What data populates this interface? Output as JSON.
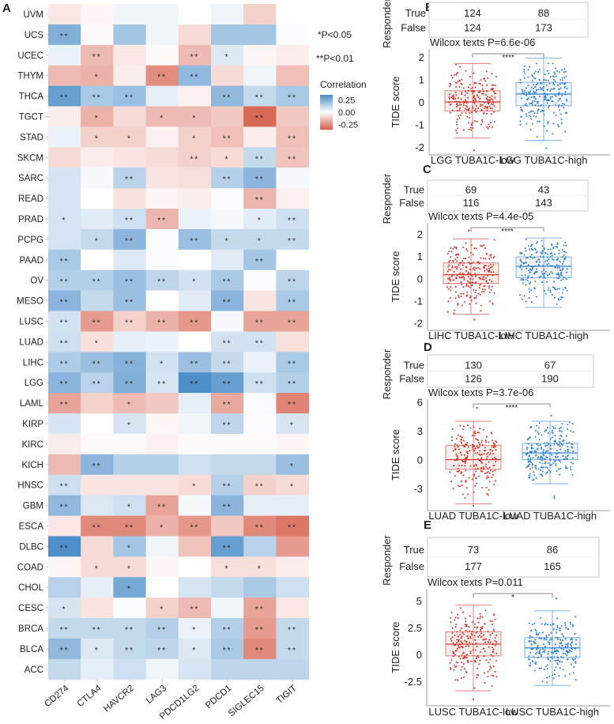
{
  "panel_labels": [
    "A",
    "B",
    "C",
    "D",
    "E"
  ],
  "chart_data": [
    {
      "type": "heatmap",
      "panel": "A",
      "rows": [
        "UVM",
        "UCS",
        "UCEC",
        "THYM",
        "THCA",
        "TGCT",
        "STAD",
        "SKCM",
        "SARC",
        "READ",
        "PRAD",
        "PCPG",
        "PAAD",
        "OV",
        "MESO",
        "LUSC",
        "LUAD",
        "LIHC",
        "LGG",
        "LAML",
        "KIRP",
        "KIRC",
        "KICH",
        "HNSC",
        "GBM",
        "ESCA",
        "DLBC",
        "COAD",
        "CHOL",
        "CESC",
        "BRCA",
        "BLCA",
        "ACC"
      ],
      "columns": [
        "CD274",
        "CTLA4",
        "HAVCR2",
        "LAG3",
        "PDCD1LG2",
        "PDCD1",
        "SIGLEC15",
        "TIGIT"
      ],
      "values": [
        [
          -0.05,
          -0.02,
          0.03,
          0.03,
          0.0,
          0.03,
          -0.1,
          0.0
        ],
        [
          0.25,
          -0.01,
          0.18,
          0.03,
          -0.08,
          0.18,
          0.18,
          0.01
        ],
        [
          0.04,
          -0.15,
          -0.05,
          -0.01,
          -0.15,
          0.07,
          -0.02,
          -0.04
        ],
        [
          -0.15,
          -0.17,
          -0.04,
          -0.25,
          0.22,
          -0.08,
          0.03,
          -0.14
        ],
        [
          0.3,
          0.17,
          0.2,
          0.05,
          -0.03,
          0.22,
          0.12,
          0.17
        ],
        [
          -0.04,
          -0.17,
          -0.08,
          -0.15,
          -0.15,
          -0.12,
          -0.33,
          -0.12
        ],
        [
          0.04,
          -0.1,
          -0.1,
          -0.03,
          -0.1,
          -0.14,
          -0.04,
          -0.14
        ],
        [
          -0.08,
          -0.04,
          -0.06,
          -0.08,
          -0.1,
          -0.08,
          0.12,
          -0.13
        ],
        [
          0.08,
          0.02,
          0.14,
          -0.06,
          -0.07,
          0.15,
          0.23,
          0.02
        ],
        [
          0.08,
          0.0,
          -0.07,
          -0.02,
          -0.04,
          0.01,
          -0.16,
          -0.03
        ],
        [
          0.08,
          0.06,
          0.1,
          -0.16,
          0.04,
          0.02,
          0.06,
          0.1
        ],
        [
          0.08,
          0.12,
          0.23,
          0.01,
          0.2,
          0.12,
          0.12,
          0.12
        ],
        [
          0.17,
          0.0,
          0.07,
          0.01,
          0.0,
          0.06,
          0.18,
          0.0
        ],
        [
          0.15,
          0.15,
          0.2,
          0.13,
          0.09,
          0.17,
          0.01,
          0.13
        ],
        [
          0.23,
          0.12,
          0.2,
          0.0,
          0.06,
          0.23,
          -0.06,
          0.17
        ],
        [
          0.09,
          -0.22,
          -0.1,
          -0.17,
          -0.23,
          0.02,
          -0.2,
          -0.2
        ],
        [
          0.1,
          -0.07,
          0.05,
          0.04,
          0.0,
          0.09,
          0.09,
          -0.07
        ],
        [
          0.16,
          0.2,
          0.24,
          0.09,
          0.2,
          0.12,
          0.04,
          0.17
        ],
        [
          0.23,
          0.14,
          0.25,
          0.08,
          0.35,
          0.3,
          0.1,
          0.15
        ],
        [
          -0.2,
          -0.1,
          -0.15,
          -0.12,
          0.05,
          -0.19,
          0.01,
          -0.27
        ],
        [
          0.08,
          0.0,
          0.08,
          -0.02,
          0.03,
          0.13,
          0.01,
          0.08
        ],
        [
          -0.04,
          -0.01,
          -0.01,
          -0.03,
          -0.01,
          -0.01,
          -0.01,
          -0.02
        ],
        [
          -0.15,
          0.23,
          0.15,
          0.15,
          0.1,
          0.12,
          0.12,
          0.2
        ],
        [
          0.1,
          -0.06,
          -0.06,
          -0.06,
          -0.08,
          0.15,
          -0.1,
          -0.08
        ],
        [
          0.22,
          0.07,
          0.1,
          -0.2,
          0.02,
          0.23,
          0.05,
          0.05
        ],
        [
          -0.05,
          -0.26,
          -0.26,
          -0.17,
          -0.23,
          -0.12,
          -0.26,
          -0.3
        ],
        [
          0.35,
          -0.08,
          0.18,
          0.03,
          -0.13,
          0.3,
          0.14,
          -0.22
        ],
        [
          -0.02,
          -0.08,
          -0.08,
          -0.02,
          0.0,
          -0.07,
          -0.07,
          -0.04
        ],
        [
          0.14,
          0.05,
          0.27,
          0.0,
          0.08,
          0.12,
          0.17,
          0.1
        ],
        [
          0.08,
          -0.06,
          0.01,
          -0.1,
          -0.15,
          0.03,
          -0.2,
          -0.05
        ],
        [
          0.12,
          0.12,
          0.12,
          0.15,
          0.04,
          0.15,
          -0.22,
          0.12
        ],
        [
          0.22,
          0.07,
          0.12,
          0.13,
          0.07,
          0.17,
          -0.26,
          0.12
        ],
        [
          0.12,
          0.05,
          0.1,
          0.03,
          0.08,
          0.13,
          0.13,
          0.13
        ]
      ],
      "stars": [
        [
          "",
          "",
          "",
          "",
          "",
          "",
          "",
          ""
        ],
        [
          "**",
          "",
          "",
          "",
          "",
          "",
          "",
          ""
        ],
        [
          "",
          "**",
          "",
          "",
          "**",
          "*",
          "",
          ""
        ],
        [
          "",
          "*",
          "",
          "**",
          "**",
          "",
          "",
          ""
        ],
        [
          "**",
          "**",
          "**",
          "",
          "",
          "**",
          "**",
          "**"
        ],
        [
          "",
          "*",
          "",
          "*",
          "*",
          "",
          "**",
          ""
        ],
        [
          "",
          "*",
          "*",
          "",
          "*",
          "**",
          "",
          "**"
        ],
        [
          "",
          "",
          "",
          "",
          "**",
          "*",
          "**",
          "**"
        ],
        [
          "",
          "",
          "**",
          "",
          "",
          "**",
          "**",
          ""
        ],
        [
          "",
          "",
          "",
          "",
          "",
          "",
          "**",
          ""
        ],
        [
          "*",
          "",
          "**",
          "**",
          "",
          "",
          "*",
          "**"
        ],
        [
          "",
          "*",
          "**",
          "",
          "**",
          "*",
          "*",
          "**"
        ],
        [
          "**",
          "",
          "",
          "",
          "",
          "",
          "**",
          ""
        ],
        [
          "**",
          "**",
          "**",
          "**",
          "*",
          "**",
          "",
          "**"
        ],
        [
          "**",
          "",
          "**",
          "",
          "",
          "**",
          "",
          "**"
        ],
        [
          "**",
          "**",
          "**",
          "**",
          "**",
          "",
          "**",
          "**"
        ],
        [
          "**",
          "*",
          "",
          "",
          "",
          "**",
          "**",
          ""
        ],
        [
          "**",
          "**",
          "**",
          "*",
          "**",
          "**",
          "",
          "**"
        ],
        [
          "**",
          "**",
          "**",
          "**",
          "**",
          "**",
          "**",
          "**"
        ],
        [
          "**",
          "",
          "*",
          "",
          "",
          "**",
          "",
          "**"
        ],
        [
          "",
          "",
          "*",
          "",
          "",
          "**",
          "",
          "*"
        ],
        [
          "",
          "",
          "",
          "",
          "",
          "",
          "",
          ""
        ],
        [
          "",
          "**",
          "",
          "",
          "",
          "",
          "",
          "*"
        ],
        [
          "**",
          "",
          "",
          "",
          "*",
          "**",
          "**",
          "*"
        ],
        [
          "**",
          "",
          "*",
          "**",
          "",
          "**",
          "",
          ""
        ],
        [
          "",
          "**",
          "**",
          "*",
          "**",
          "",
          "**",
          "**"
        ],
        [
          "**",
          "",
          "*",
          "",
          "",
          "**",
          "",
          ""
        ],
        [
          "",
          "*",
          "*",
          "",
          "",
          "*",
          "*",
          ""
        ],
        [
          "",
          "",
          "*",
          "",
          "",
          "",
          "",
          ""
        ],
        [
          "*",
          "",
          "",
          "*",
          "**",
          "",
          "**",
          ""
        ],
        [
          "**",
          "**",
          "**",
          "**",
          "*",
          "**",
          "**",
          "**"
        ],
        [
          "**",
          "*",
          "**",
          "**",
          "*",
          "**",
          "**",
          "**"
        ],
        [
          "",
          "",
          "",
          "",
          "",
          "",
          "",
          ""
        ]
      ],
      "legend": {
        "sig1": "*P<0.05",
        "sig2": "**P<0.01",
        "title": "Correlation",
        "ticks": [
          "0.25",
          "0.00",
          "-0.25"
        ],
        "range": [
          -0.35,
          0.35
        ],
        "colors": {
          "low": "#d6604d",
          "mid": "#ffffff",
          "high": "#4f8fc9"
        }
      }
    },
    {
      "type": "box",
      "panel": "B",
      "table": {
        "row_title": "Responder",
        "rows": [
          {
            "label": "True",
            "values": [
              "124",
              "88"
            ]
          },
          {
            "label": "False",
            "values": [
              "124",
              "173"
            ]
          }
        ]
      },
      "title": "Wilcox texts P=6.6e-06",
      "significance": "****",
      "ylabel": "TIDE score",
      "yticks": [
        "2",
        "1",
        "0",
        "-1",
        "-2"
      ],
      "ytick_values": [
        2,
        1,
        0,
        -1,
        -2
      ],
      "ylim": [
        -2.35,
        2.35
      ],
      "categories": [
        "LGG TUBA1C-low",
        "LGG TUBA1C-high"
      ],
      "boxes": [
        {
          "min": -1.6,
          "q1": -0.4,
          "median": 0.0,
          "q3": 0.5,
          "max": 1.7,
          "outliers": [
            -2.15
          ],
          "color": "#d2352c"
        },
        {
          "min": -1.7,
          "q1": -0.17,
          "median": 0.35,
          "q3": 0.87,
          "max": 1.95,
          "outliers": [
            -2.05
          ],
          "color": "#2f7fd0"
        }
      ]
    },
    {
      "type": "box",
      "panel": "C",
      "table": {
        "row_title": "Responder",
        "rows": [
          {
            "label": "True",
            "values": [
              "69",
              "43"
            ]
          },
          {
            "label": "False",
            "values": [
              "116",
              "143"
            ]
          }
        ]
      },
      "title": "Wilcox texts P=4.4e-05",
      "significance": "****",
      "ylabel": "TIDE score",
      "yticks": [
        "2",
        "1",
        "0",
        "-1",
        "-2"
      ],
      "ytick_values": [
        2,
        1,
        0,
        -1,
        -2
      ],
      "ylim": [
        -2.33,
        2.5
      ],
      "categories": [
        "LIHC TUBA1C-low",
        "LIHC TUBA1C-high"
      ],
      "boxes": [
        {
          "min": -1.6,
          "q1": -0.22,
          "median": 0.17,
          "q3": 0.7,
          "max": 1.78,
          "outliers": [
            2.15,
            -1.85
          ],
          "color": "#d2352c"
        },
        {
          "min": -1.3,
          "q1": 0.03,
          "median": 0.55,
          "q3": 0.97,
          "max": 1.82,
          "outliers": [],
          "color": "#2f7fd0"
        }
      ]
    },
    {
      "type": "box",
      "panel": "D",
      "table": {
        "row_title": "Responder",
        "rows": [
          {
            "label": "True",
            "values": [
              "130",
              "67"
            ]
          },
          {
            "label": "False",
            "values": [
              "126",
              "190"
            ]
          }
        ]
      },
      "title": "Wilcox texts P=3.7e-06",
      "significance": "****",
      "ylabel": "TIDE score",
      "yticks": [
        "6",
        "3",
        "0",
        "-3"
      ],
      "ytick_values": [
        6,
        3,
        0,
        -3
      ],
      "ylim": [
        -5.3,
        6.3
      ],
      "categories": [
        "LUAD TUBA1C-low",
        "LUAD TUBA1C-high"
      ],
      "boxes": [
        {
          "min": -4.6,
          "q1": -1.0,
          "median": 0.0,
          "q3": 1.5,
          "max": 4.0,
          "outliers": [
            5.4,
            -4.8
          ],
          "color": "#d2352c"
        },
        {
          "min": -2.5,
          "q1": 0.0,
          "median": 0.7,
          "q3": 1.7,
          "max": 4.0,
          "outliers": [
            4.6,
            -3.8,
            -4.0
          ],
          "color": "#2f7fd0"
        }
      ]
    },
    {
      "type": "box",
      "panel": "E",
      "table": {
        "row_title": "Responder",
        "rows": [
          {
            "label": "True",
            "values": [
              "73",
              "86"
            ]
          },
          {
            "label": "False",
            "values": [
              "177",
              "165"
            ]
          }
        ]
      },
      "title": "Wilcox texts P=0.011",
      "significance": "*",
      "ylabel": "TIDE score",
      "yticks": [
        "5",
        "2.5",
        "0",
        "-2.5"
      ],
      "ytick_values": [
        5,
        2.5,
        0,
        -2.5
      ],
      "ylim": [
        -4.8,
        6.1
      ],
      "categories": [
        "LUSC TUBA1C-low",
        "LUSC TUBA1C-high"
      ],
      "boxes": [
        {
          "min": -3.4,
          "q1": -0.15,
          "median": 0.95,
          "q3": 2.1,
          "max": 4.6,
          "outliers": [
            -4.2
          ],
          "color": "#d2352c"
        },
        {
          "min": -2.9,
          "q1": -0.3,
          "median": 0.6,
          "q3": 1.55,
          "max": 4.05,
          "outliers": [
            5.2
          ],
          "color": "#2f7fd0"
        }
      ]
    }
  ]
}
